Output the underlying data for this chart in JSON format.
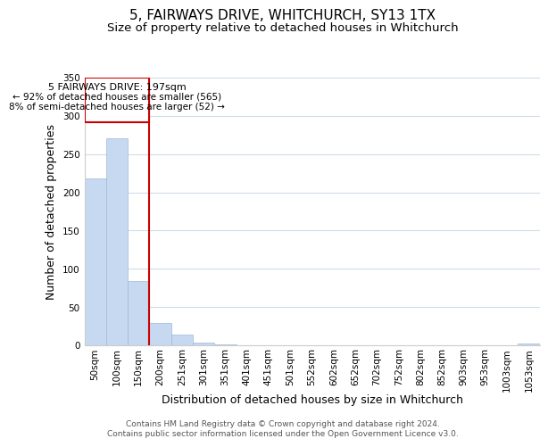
{
  "title": "5, FAIRWAYS DRIVE, WHITCHURCH, SY13 1TX",
  "subtitle": "Size of property relative to detached houses in Whitchurch",
  "xlabel": "Distribution of detached houses by size in Whitchurch",
  "ylabel": "Number of detached properties",
  "bar_color": "#c6d9f0",
  "bar_edge_color": "#a0b8d8",
  "bin_labels": [
    "50sqm",
    "100sqm",
    "150sqm",
    "200sqm",
    "251sqm",
    "301sqm",
    "351sqm",
    "401sqm",
    "451sqm",
    "501sqm",
    "552sqm",
    "602sqm",
    "652sqm",
    "702sqm",
    "752sqm",
    "802sqm",
    "852sqm",
    "903sqm",
    "953sqm",
    "1003sqm",
    "1053sqm"
  ],
  "bar_heights": [
    218,
    271,
    84,
    29,
    14,
    4,
    1,
    0,
    0,
    0,
    0,
    0,
    0,
    0,
    0,
    0,
    0,
    0,
    0,
    0,
    2
  ],
  "ylim": [
    0,
    350
  ],
  "yticks": [
    0,
    50,
    100,
    150,
    200,
    250,
    300,
    350
  ],
  "property_line_x": 3,
  "property_line_label": "5 FAIRWAYS DRIVE: 197sqm",
  "annotation_line1": "← 92% of detached houses are smaller (565)",
  "annotation_line2": "8% of semi-detached houses are larger (52) →",
  "annotation_box_color": "#ffffff",
  "annotation_box_edge": "#cc0000",
  "vline_color": "#cc0000",
  "footer1": "Contains HM Land Registry data © Crown copyright and database right 2024.",
  "footer2": "Contains public sector information licensed under the Open Government Licence v3.0.",
  "bg_color": "#ffffff",
  "grid_color": "#d0dce8",
  "title_fontsize": 11,
  "subtitle_fontsize": 9.5,
  "axis_label_fontsize": 9,
  "tick_fontsize": 7.5,
  "footer_fontsize": 6.5,
  "annot_fontsize": 8.0
}
